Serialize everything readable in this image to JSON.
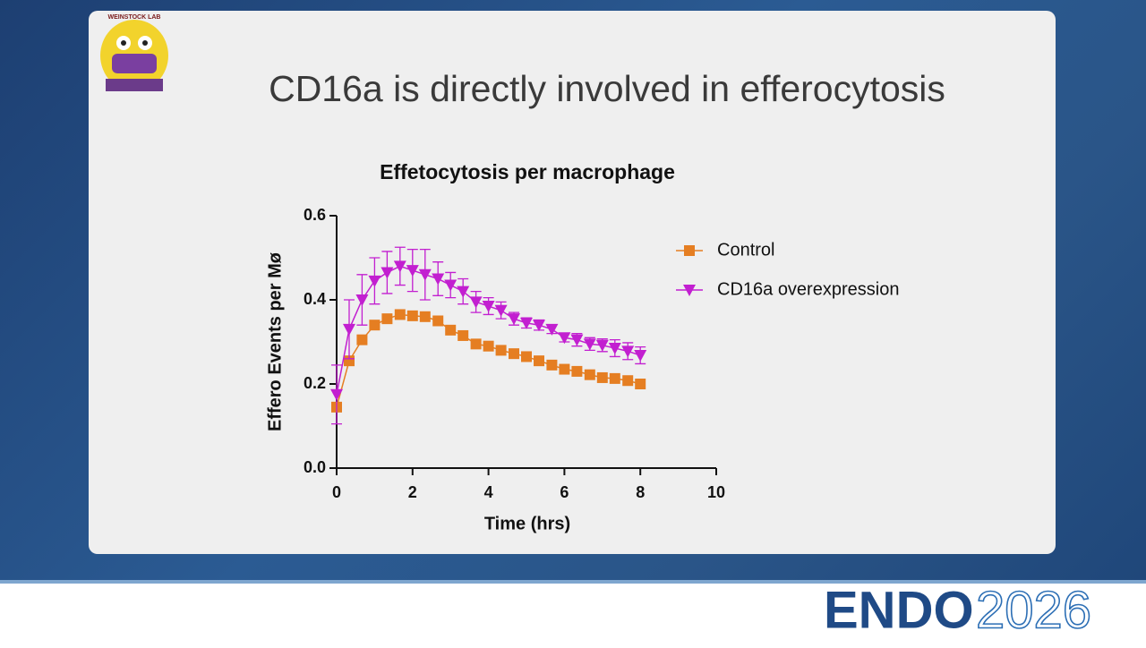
{
  "slide": {
    "title": "CD16a is directly involved in efferocytosis"
  },
  "logo": {
    "lab": "WEINSTOCK LAB"
  },
  "footer": {
    "brand": "ENDO",
    "year": "2026"
  },
  "chart_data": {
    "type": "line",
    "title": "Effetocytosis per macrophage",
    "x_label": "Time (hrs)",
    "y_label": "Effero Events per Mø",
    "x": [
      0,
      0.33,
      0.67,
      1,
      1.33,
      1.67,
      2,
      2.33,
      2.67,
      3,
      3.33,
      3.67,
      4,
      4.33,
      4.67,
      5,
      5.33,
      5.67,
      6,
      6.33,
      6.67,
      7,
      7.33,
      7.67,
      8
    ],
    "series": [
      {
        "name": "Control",
        "color": "#e57e22",
        "marker": "square",
        "values": [
          0.145,
          0.255,
          0.305,
          0.34,
          0.355,
          0.365,
          0.362,
          0.36,
          0.35,
          0.328,
          0.315,
          0.295,
          0.29,
          0.28,
          0.272,
          0.265,
          0.255,
          0.245,
          0.235,
          0.23,
          0.222,
          0.215,
          0.213,
          0.208,
          0.2
        ]
      },
      {
        "name": "CD16a overexpression",
        "color": "#c21fd0",
        "marker": "triangle-down",
        "values": [
          0.175,
          0.33,
          0.4,
          0.445,
          0.465,
          0.48,
          0.47,
          0.46,
          0.45,
          0.435,
          0.42,
          0.395,
          0.385,
          0.375,
          0.355,
          0.345,
          0.34,
          0.33,
          0.31,
          0.305,
          0.295,
          0.292,
          0.285,
          0.278,
          0.268
        ],
        "errors": [
          0.07,
          0.07,
          0.06,
          0.055,
          0.05,
          0.045,
          0.05,
          0.06,
          0.04,
          0.03,
          0.03,
          0.025,
          0.02,
          0.02,
          0.015,
          0.012,
          0.012,
          0.01,
          0.01,
          0.015,
          0.015,
          0.015,
          0.02,
          0.02,
          0.02
        ]
      }
    ],
    "xlim": [
      0,
      10
    ],
    "xticks": [
      0,
      2,
      4,
      6,
      8,
      10
    ],
    "ylim": [
      0,
      0.6
    ],
    "yticks": [
      {
        "value": 0,
        "label": "0.0"
      },
      0.2,
      0.4,
      0.6
    ],
    "legend": "right"
  }
}
